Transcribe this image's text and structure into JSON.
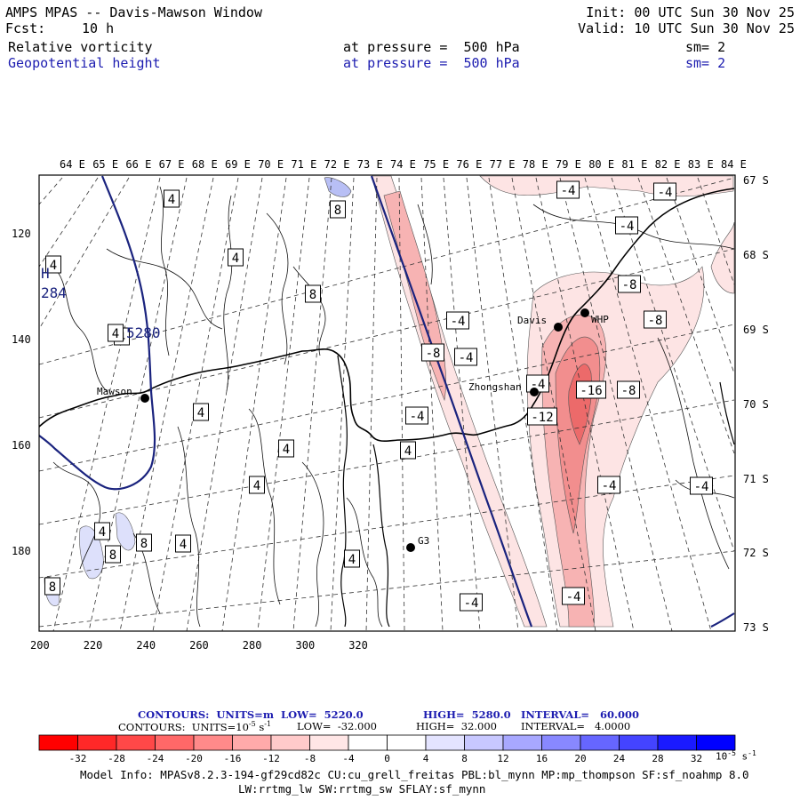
{
  "header": {
    "title": "AMPS MPAS -- Davis-Mawson Window",
    "forecast_label": "Fcst:",
    "forecast_value": "10 h",
    "init": "Init: 00 UTC Sun 30 Nov 25",
    "valid": "Valid: 10 UTC Sun 30 Nov 25",
    "fields": [
      {
        "name": "Relative vorticity",
        "level": "at pressure =  500 hPa",
        "smooth": "sm= 2",
        "color": "#000000"
      },
      {
        "name": "Geopotential height",
        "level": "at pressure =  500 hPa",
        "smooth": "sm= 2",
        "color": "#1c1cb0"
      }
    ]
  },
  "map": {
    "lon_labels": [
      "64 E",
      "65 E",
      "66 E",
      "67 E",
      "68 E",
      "69 E",
      "70 E",
      "71 E",
      "72 E",
      "73 E",
      "74 E",
      "75 E",
      "76 E",
      "77 E",
      "78 E",
      "79 E",
      "80 E",
      "81 E",
      "82 E",
      "83 E",
      "84 E"
    ],
    "lat_labels": [
      "67 S",
      "68 S",
      "69 S",
      "70 S",
      "71 S",
      "72 S",
      "73 S"
    ],
    "y_ticks": [
      "120",
      "140",
      "160",
      "180"
    ],
    "x_ticks": [
      "200",
      "220",
      "240",
      "260",
      "280",
      "300",
      "320"
    ],
    "stations": [
      {
        "name": "Mawson"
      },
      {
        "name": "Davis"
      },
      {
        "name": "WHP"
      },
      {
        "name": "Zhongshan"
      },
      {
        "name": "G3"
      }
    ],
    "height_labels": {
      "high_letter": "H",
      "high_value": "284",
      "contour_5280": "5280"
    },
    "vorticity_box_labels": [
      "4",
      "4",
      "4",
      "4",
      "4",
      "4",
      "4",
      "4",
      "4",
      "4",
      "4",
      "4",
      "8",
      "8",
      "8",
      "8",
      "8",
      "-4",
      "-4",
      "-4",
      "-4",
      "-4",
      "-4",
      "-4",
      "-4",
      "-4",
      "-4",
      "-8",
      "-8",
      "-8",
      "-8",
      "-12",
      "-16",
      "-4"
    ],
    "colors": {
      "height_contour": "#1a237e",
      "positive_shade": "#b8bff5",
      "negative_shade": "#f08a8a"
    }
  },
  "legend": {
    "contour1": {
      "label": "CONTOURS:  UNITS=m",
      "low": "LOW=  5220.0",
      "high": "HIGH=  5280.0",
      "interval": "INTERVAL=   60.000"
    },
    "contour2": {
      "label": "CONTOURS:  UNITS=10",
      "exp": "-5",
      "unit_s": " s",
      "unit_exp": "-1",
      "low": "LOW=  -32.000",
      "high": "HIGH=  32.000",
      "interval": "INTERVAL=   4.0000"
    },
    "colorbar_ticks": [
      "-32",
      "-28",
      "-24",
      "-20",
      "-16",
      "-12",
      "-8",
      "-4",
      "0",
      "4",
      "8",
      "12",
      "16",
      "20",
      "24",
      "28",
      "32"
    ],
    "colorbar_colors": [
      "#ff0000",
      "#ff2828",
      "#ff4848",
      "#ff6868",
      "#ff8a8a",
      "#ffaaaa",
      "#ffcaca",
      "#ffe6e6",
      "#ffffff",
      "#ffffff",
      "#e4e4ff",
      "#c8c8ff",
      "#a8a8ff",
      "#8888ff",
      "#6666ff",
      "#4444ff",
      "#1a1aff",
      "#0000ff"
    ],
    "unit_text": "10",
    "unit_exp": "-5",
    "unit_s": " s",
    "unit_s_exp": "-1"
  },
  "footer": {
    "line1": "Model Info: MPASv8.2.3-194-gf29cd82c CU:cu_grell_freitas PBL:bl_mynn MP:mp_thompson SF:sf_noahmp 8.0",
    "line2": "LW:rrtmg_lw SW:rrtmg_sw SFLAY:sf_mynn"
  }
}
